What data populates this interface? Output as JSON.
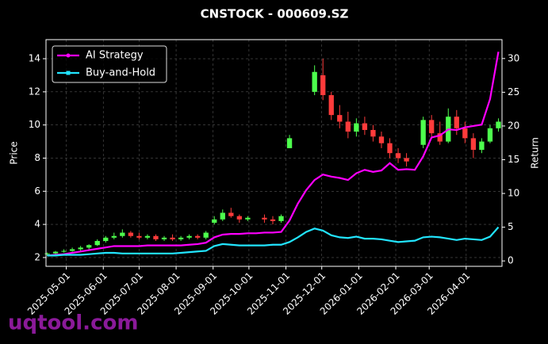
{
  "chart_data": {
    "type": "candlestick",
    "title": "CNSTOCK - 000609.SZ",
    "ylabel": "Price",
    "y2label": "Return",
    "watermark": "uqtool.com",
    "up_color": "#4dff4d",
    "down_color": "#ff3b3b",
    "grid": true,
    "legend": "upper left",
    "x": [
      "2025-04-15",
      "2025-04-22",
      "2025-04-29",
      "2025-05-06",
      "2025-05-13",
      "2025-05-20",
      "2025-05-27",
      "2025-06-03",
      "2025-06-10",
      "2025-06-17",
      "2025-06-24",
      "2025-07-01",
      "2025-07-08",
      "2025-07-15",
      "2025-07-22",
      "2025-07-29",
      "2025-08-05",
      "2025-08-12",
      "2025-08-19",
      "2025-08-26",
      "2025-09-02",
      "2025-09-09",
      "2025-09-16",
      "2025-09-23",
      "2025-09-30",
      "2025-10-07",
      "2025-10-14",
      "2025-10-21",
      "2025-10-28",
      "2025-11-04",
      "2025-11-11",
      "2025-11-18",
      "2025-11-25",
      "2025-12-02",
      "2025-12-09",
      "2025-12-16",
      "2025-12-23",
      "2025-12-30",
      "2026-01-06",
      "2026-01-13",
      "2026-01-20",
      "2026-01-27",
      "2026-02-03",
      "2026-02-10",
      "2026-02-17",
      "2026-02-24",
      "2026-03-03",
      "2026-03-10",
      "2026-03-17",
      "2026-03-24",
      "2026-03-31",
      "2026-04-07",
      "2026-04-14",
      "2026-04-21",
      "2026-04-28"
    ],
    "open": [
      2.2,
      2.25,
      2.35,
      2.4,
      2.5,
      2.6,
      2.75,
      3.0,
      3.2,
      3.3,
      3.5,
      3.3,
      3.2,
      3.3,
      3.1,
      3.2,
      3.1,
      3.2,
      3.3,
      3.2,
      4.1,
      4.3,
      4.7,
      4.5,
      4.3,
      null,
      4.4,
      4.3,
      4.2,
      8.6,
      null,
      null,
      12.0,
      13.0,
      11.8,
      10.6,
      10.2,
      9.6,
      10.1,
      9.7,
      9.3,
      8.9,
      8.3,
      8.0,
      null,
      8.8,
      10.3,
      9.5,
      9.0,
      10.5,
      9.8,
      9.2,
      8.5,
      9.0,
      9.8
    ],
    "high": [
      2.3,
      2.4,
      2.5,
      2.6,
      2.7,
      2.8,
      3.1,
      3.3,
      3.5,
      3.7,
      3.6,
      3.5,
      3.4,
      3.4,
      3.3,
      3.4,
      3.3,
      3.4,
      3.4,
      3.6,
      4.5,
      4.9,
      5.0,
      4.6,
      4.5,
      null,
      4.6,
      4.5,
      4.6,
      9.4,
      null,
      null,
      13.6,
      14.0,
      12.0,
      11.2,
      10.8,
      10.4,
      10.5,
      10.0,
      9.6,
      9.2,
      8.6,
      8.3,
      null,
      10.5,
      10.6,
      10.2,
      11.0,
      10.9,
      10.2,
      9.5,
      9.2,
      10.0,
      10.4
    ],
    "low": [
      2.1,
      2.2,
      2.3,
      2.35,
      2.4,
      2.5,
      2.7,
      2.9,
      3.1,
      3.2,
      3.2,
      3.1,
      3.1,
      3.0,
      3.0,
      3.0,
      3.0,
      3.1,
      3.1,
      3.1,
      4.0,
      4.2,
      4.4,
      4.1,
      4.2,
      null,
      4.1,
      4.0,
      4.1,
      8.6,
      null,
      null,
      11.8,
      11.5,
      10.3,
      9.8,
      9.2,
      9.3,
      9.4,
      9.0,
      8.6,
      8.0,
      7.7,
      7.5,
      null,
      8.6,
      9.3,
      8.8,
      8.9,
      9.4,
      8.9,
      8.0,
      8.3,
      8.9,
      9.6
    ],
    "close": [
      2.25,
      2.35,
      2.4,
      2.5,
      2.6,
      2.75,
      3.0,
      3.2,
      3.3,
      3.5,
      3.3,
      3.2,
      3.3,
      3.1,
      3.2,
      3.1,
      3.2,
      3.3,
      3.2,
      3.5,
      4.3,
      4.7,
      4.5,
      4.3,
      4.4,
      null,
      4.3,
      4.2,
      4.5,
      9.2,
      null,
      null,
      13.2,
      11.8,
      10.6,
      10.2,
      9.6,
      10.1,
      9.7,
      9.3,
      8.9,
      8.3,
      8.0,
      7.8,
      null,
      10.3,
      9.5,
      9.0,
      10.5,
      9.8,
      9.2,
      8.5,
      9.0,
      9.8,
      10.2
    ],
    "series": [
      {
        "name": "AI Strategy",
        "color": "#ff00ff",
        "axis": "y2",
        "values": [
          0.8,
          0.9,
          1.0,
          1.2,
          1.4,
          1.6,
          1.8,
          2.0,
          2.2,
          2.2,
          2.2,
          2.2,
          2.3,
          2.3,
          2.3,
          2.3,
          2.3,
          2.4,
          2.5,
          2.7,
          3.5,
          3.9,
          4.0,
          4.0,
          4.1,
          4.1,
          4.2,
          4.2,
          4.3,
          6.0,
          8.5,
          10.5,
          12.0,
          12.8,
          12.5,
          12.3,
          12.0,
          13.0,
          13.5,
          13.2,
          13.4,
          14.5,
          13.5,
          13.6,
          13.5,
          15.5,
          18.3,
          18.6,
          19.5,
          19.4,
          19.8,
          20.0,
          20.2,
          24.0,
          31.0
        ]
      },
      {
        "name": "Buy-and-Hold",
        "color": "#22e5ff",
        "axis": "y2",
        "values": [
          0.8,
          0.8,
          0.9,
          0.9,
          0.9,
          1.0,
          1.1,
          1.2,
          1.2,
          1.1,
          1.1,
          1.1,
          1.1,
          1.1,
          1.1,
          1.1,
          1.2,
          1.3,
          1.4,
          1.5,
          2.2,
          2.5,
          2.4,
          2.3,
          2.3,
          2.3,
          2.3,
          2.4,
          2.4,
          2.8,
          3.5,
          4.3,
          4.8,
          4.5,
          3.8,
          3.5,
          3.4,
          3.6,
          3.3,
          3.3,
          3.2,
          3.0,
          2.8,
          2.9,
          3.0,
          3.5,
          3.6,
          3.5,
          3.3,
          3.1,
          3.3,
          3.2,
          3.1,
          3.6,
          5.0
        ]
      }
    ],
    "xlim": [
      "2025-04-14",
      "2026-05-01"
    ],
    "xticks": [
      "2025-05-01",
      "2025-06-01",
      "2025-07-01",
      "2025-08-01",
      "2025-09-01",
      "2025-10-01",
      "2025-11-01",
      "2025-12-01",
      "2026-01-01",
      "2026-02-01",
      "2026-03-01",
      "2026-04-01"
    ],
    "ylim": [
      1.47,
      15.15
    ],
    "yticks": [
      2,
      4,
      6,
      8,
      10,
      12,
      14
    ],
    "y2lim": [
      -0.8,
      32.8
    ],
    "y2ticks": [
      0,
      5,
      10,
      15,
      20,
      25,
      30
    ]
  }
}
